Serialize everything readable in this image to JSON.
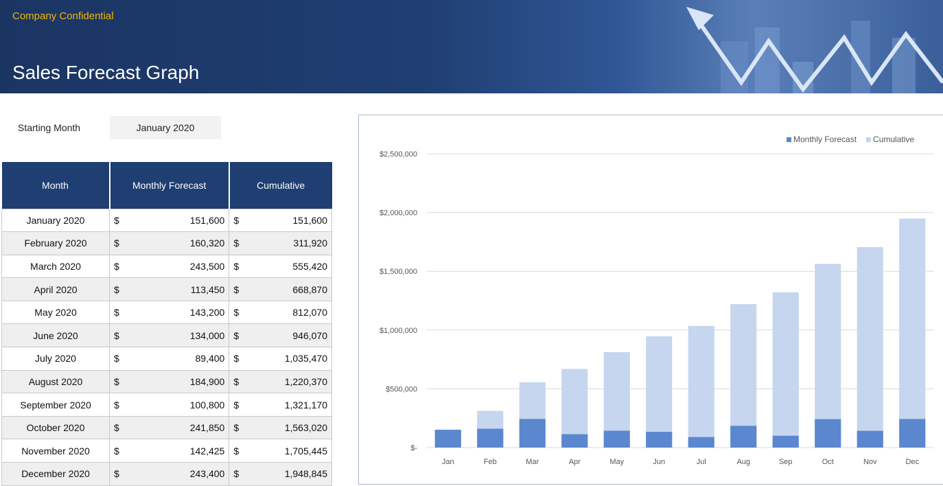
{
  "header": {
    "confidential": "Company Confidential",
    "title": "Sales Forecast Graph"
  },
  "starting_month": {
    "label": "Starting Month",
    "value": "January 2020"
  },
  "table": {
    "headers": [
      "Month",
      "Monthly Forecast",
      "Cumulative"
    ],
    "currency_symbol": "$",
    "rows": [
      {
        "month": "January 2020",
        "monthly": "151,600",
        "cumulative": "151,600"
      },
      {
        "month": "February 2020",
        "monthly": "160,320",
        "cumulative": "311,920"
      },
      {
        "month": "March 2020",
        "monthly": "243,500",
        "cumulative": "555,420"
      },
      {
        "month": "April 2020",
        "monthly": "113,450",
        "cumulative": "668,870"
      },
      {
        "month": "May 2020",
        "monthly": "143,200",
        "cumulative": "812,070"
      },
      {
        "month": "June 2020",
        "monthly": "134,000",
        "cumulative": "946,070"
      },
      {
        "month": "July 2020",
        "monthly": "89,400",
        "cumulative": "1,035,470"
      },
      {
        "month": "August 2020",
        "monthly": "184,900",
        "cumulative": "1,220,370"
      },
      {
        "month": "September 2020",
        "monthly": "100,800",
        "cumulative": "1,321,170"
      },
      {
        "month": "October 2020",
        "monthly": "241,850",
        "cumulative": "1,563,020"
      },
      {
        "month": "November 2020",
        "monthly": "142,425",
        "cumulative": "1,705,445"
      },
      {
        "month": "December 2020",
        "monthly": "243,400",
        "cumulative": "1,948,845"
      }
    ]
  },
  "chart_data": {
    "type": "bar",
    "title": "",
    "xlabel": "",
    "ylabel": "",
    "categories": [
      "Jan",
      "Feb",
      "Mar",
      "Apr",
      "May",
      "Jun",
      "Jul",
      "Aug",
      "Sep",
      "Oct",
      "Nov",
      "Dec"
    ],
    "series": [
      {
        "name": "Monthly Forecast",
        "color": "#5b87cf",
        "values": [
          151600,
          160320,
          243500,
          113450,
          143200,
          134000,
          89400,
          184900,
          100800,
          241850,
          142425,
          243400
        ]
      },
      {
        "name": "Cumulative",
        "color": "#c6d6ee",
        "values": [
          151600,
          311920,
          555420,
          668870,
          812070,
          946070,
          1035470,
          1220370,
          1321170,
          1563020,
          1705445,
          1948845
        ]
      }
    ],
    "overlap": true,
    "ylim": [
      0,
      2500000
    ],
    "yticks": [
      0,
      500000,
      1000000,
      1500000,
      2000000,
      2500000
    ],
    "ytick_labels": [
      "$-",
      "$500,000",
      "$1,000,000",
      "$1,500,000",
      "$2,000,000",
      "$2,500,000"
    ],
    "grid": true,
    "legend_position": "top-right"
  }
}
